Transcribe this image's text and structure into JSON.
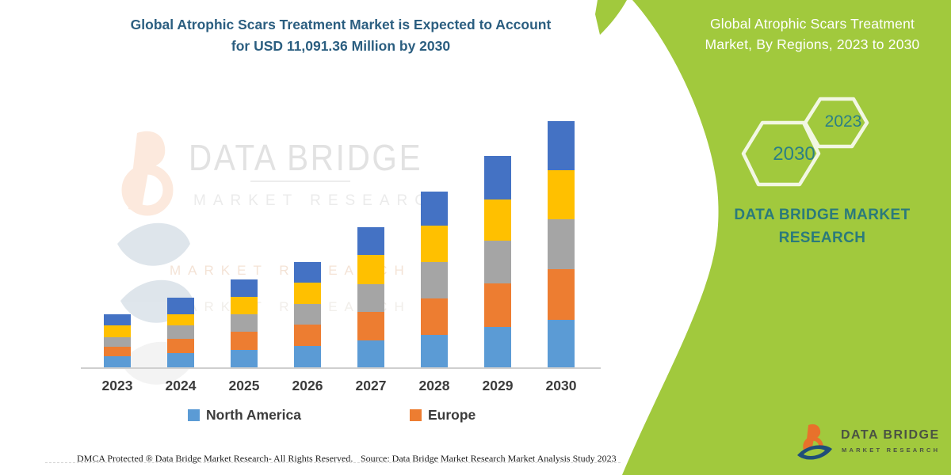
{
  "header": {
    "title_line1": "Global Atrophic Scars Treatment Market is Expected to Account",
    "title_line2": "for USD 11,091.36 Million by 2030",
    "title_color": "#2b5e80"
  },
  "side_panel": {
    "bg_color": "#a1c93d",
    "heading_line1": "Global Atrophic Scars Treatment",
    "heading_line2": "Market, By Regions, 2023 to 2030",
    "hexagon_big_label": "2030",
    "hexagon_small_label": "2023",
    "brand_line1": "DATA BRIDGE MARKET",
    "brand_line2": "RESEARCH",
    "brand_color": "#2b7a7b"
  },
  "watermark": {
    "line1": "DATA BRIDGE",
    "line2": "MARKET RESEARCH",
    "reflection1": "MARKET RESEARCH",
    "reflection2": "MARKET RESEARCH"
  },
  "chart_data": {
    "type": "bar",
    "stacked": true,
    "title": "Global Atrophic Scars Treatment Market, By Regions, 2023 to 2030",
    "unit": "USD Million",
    "categories": [
      "2023",
      "2024",
      "2025",
      "2026",
      "2027",
      "2028",
      "2029",
      "2030"
    ],
    "series": [
      {
        "name": "North America",
        "color": "#5B9BD5",
        "in_legend": true,
        "values": [
          490,
          630,
          800,
          960,
          1215,
          1465,
          1835,
          2150
        ]
      },
      {
        "name": "Europe",
        "color": "#ED7D31",
        "in_legend": true,
        "values": [
          450,
          655,
          790,
          955,
          1290,
          1650,
          1930,
          2265
        ]
      },
      {
        "name": "unlabeled-region-gray",
        "color": "#A5A5A5",
        "in_legend": false,
        "values": [
          430,
          600,
          790,
          930,
          1250,
          1640,
          1930,
          2265
        ]
      },
      {
        "name": "unlabeled-region-yellow",
        "color": "#FFC000",
        "in_legend": false,
        "values": [
          540,
          515,
          800,
          960,
          1310,
          1625,
          1860,
          2185
        ]
      },
      {
        "name": "unlabeled-region-blue",
        "color": "#4472C4",
        "in_legend": false,
        "values": [
          500,
          750,
          790,
          955,
          1265,
          1520,
          1965,
          2226
        ]
      }
    ],
    "totals_estimated": [
      2410,
      3150,
      3970,
      4760,
      6330,
      7900,
      9520,
      11091.36
    ],
    "stated_2030_total": "USD 11,091.36 Million",
    "ylim": [
      0,
      11650
    ],
    "grid": false,
    "y_axis_visible": false,
    "legend_position": "bottom"
  },
  "legend": {
    "items": [
      {
        "label": "North America",
        "color": "#5B9BD5"
      },
      {
        "label": "Europe",
        "color": "#ED7D31"
      }
    ]
  },
  "footer": {
    "dmca": "DMCA Protected ® Data Bridge Market Research-  All Rights Reserved.",
    "source": "Source: Data Bridge Market Research  Market Analysis Study 2023"
  },
  "logo": {
    "name": "DATA BRIDGE",
    "subtitle": "MARKET RESEARCH"
  }
}
